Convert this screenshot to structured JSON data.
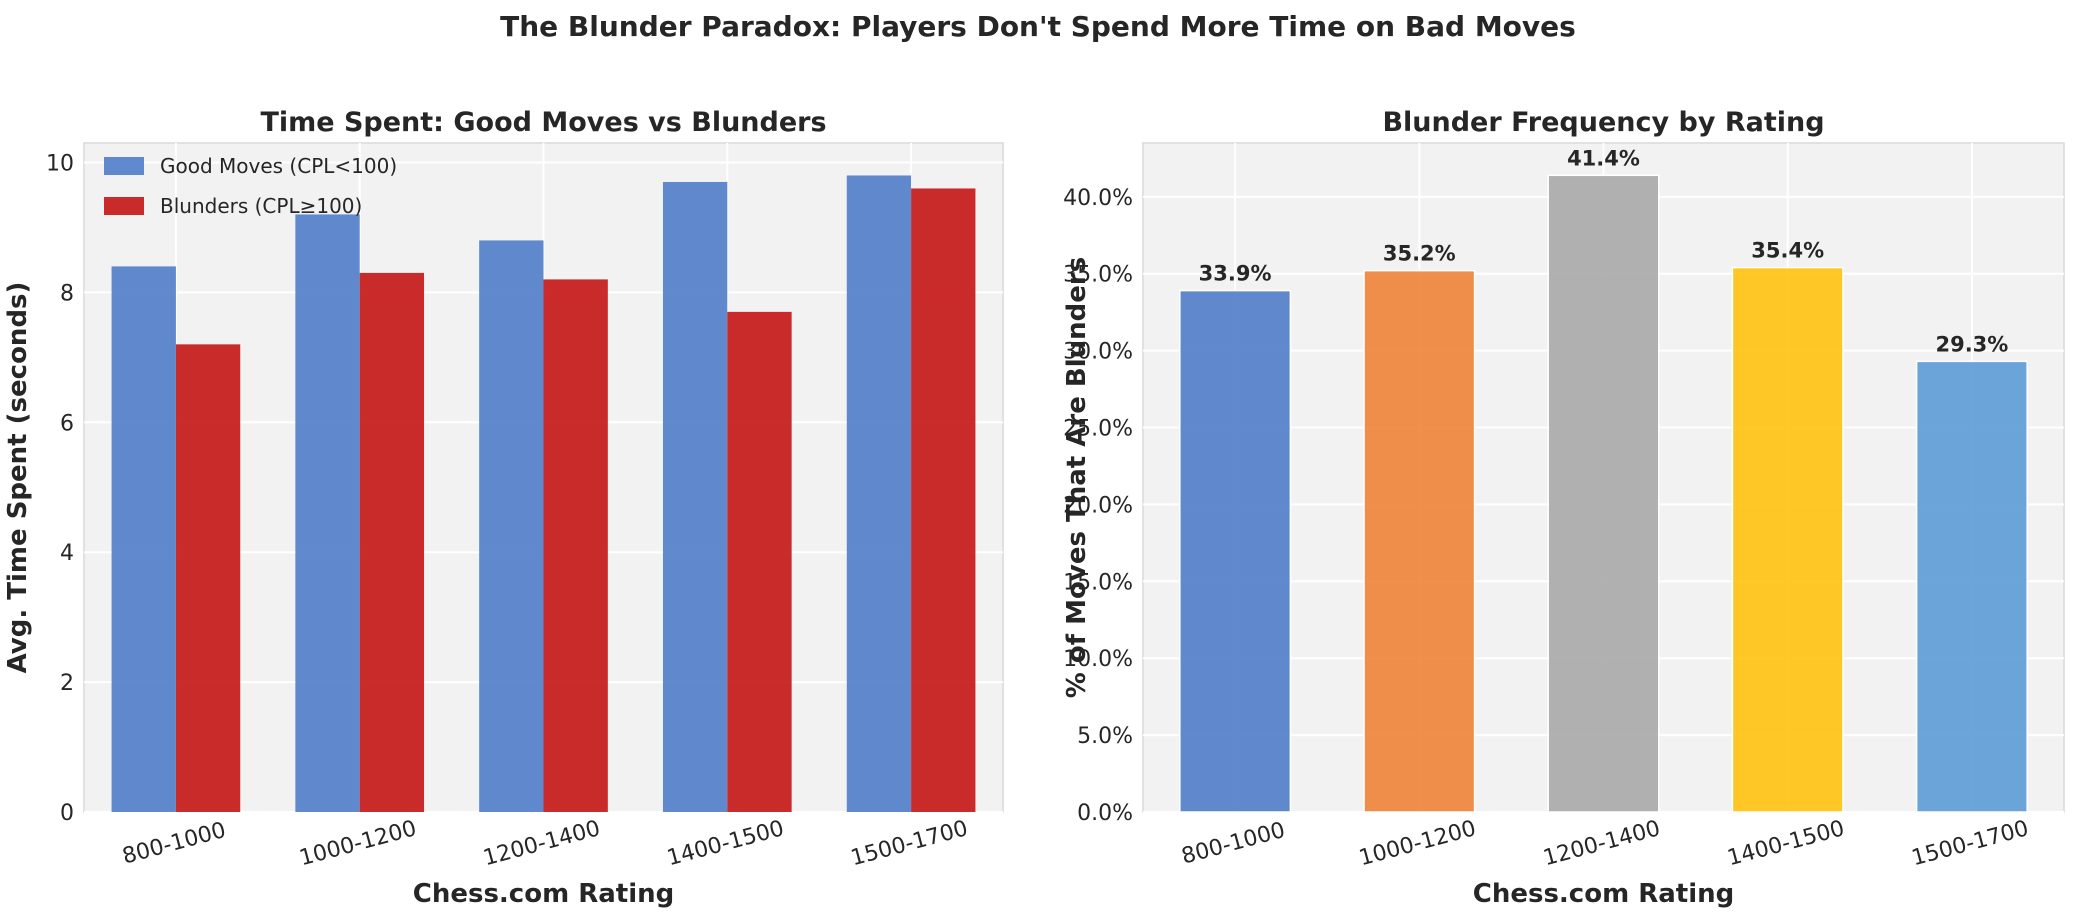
{
  "suptitle": "The Blunder Paradox: Players Don't Spend More Time on Bad Moves",
  "chart_data": [
    {
      "type": "bar",
      "title": "Time Spent: Good Moves vs Blunders",
      "xlabel": "Chess.com Rating",
      "ylabel": "Avg. Time Spent (seconds)",
      "categories": [
        "800-1000",
        "1000-1200",
        "1200-1400",
        "1400-1500",
        "1500-1700"
      ],
      "series": [
        {
          "name": "Good Moves (CPL<100)",
          "color": "#4F7CC9",
          "values": [
            8.4,
            9.2,
            8.8,
            9.7,
            9.8
          ]
        },
        {
          "name": "Blunders (CPL≥100)",
          "color": "#C41414",
          "values": [
            7.2,
            8.3,
            8.2,
            7.7,
            9.6
          ]
        }
      ],
      "ylim": [
        0,
        10.3
      ],
      "yticks": [
        0,
        2,
        4,
        6,
        8,
        10
      ],
      "ytick_labels": [
        "0",
        "2",
        "4",
        "6",
        "8",
        "10"
      ],
      "grid": true,
      "legend_position": "top-left",
      "background": "#F2F2F2"
    },
    {
      "type": "bar",
      "title": "Blunder Frequency by Rating",
      "xlabel": "Chess.com Rating",
      "ylabel": "% of Moves That Are Blunders",
      "categories": [
        "800-1000",
        "1000-1200",
        "1200-1400",
        "1400-1500",
        "1500-1700"
      ],
      "values": [
        33.9,
        35.2,
        41.4,
        35.4,
        29.3
      ],
      "value_labels": [
        "33.9%",
        "35.2%",
        "41.4%",
        "35.4%",
        "29.3%"
      ],
      "colors": [
        "#4F7CC9",
        "#EE8339",
        "#A9A9A9",
        "#FFC20E",
        "#5B9BD5"
      ],
      "ylim": [
        0,
        43.5
      ],
      "yticks": [
        0,
        5,
        10,
        15,
        20,
        25,
        30,
        35,
        40
      ],
      "ytick_labels": [
        "0.0%",
        "5.0%",
        "10.0%",
        "15.0%",
        "20.0%",
        "25.0%",
        "30.0%",
        "35.0%",
        "40.0%"
      ],
      "grid": true,
      "background": "#F2F2F2"
    }
  ]
}
